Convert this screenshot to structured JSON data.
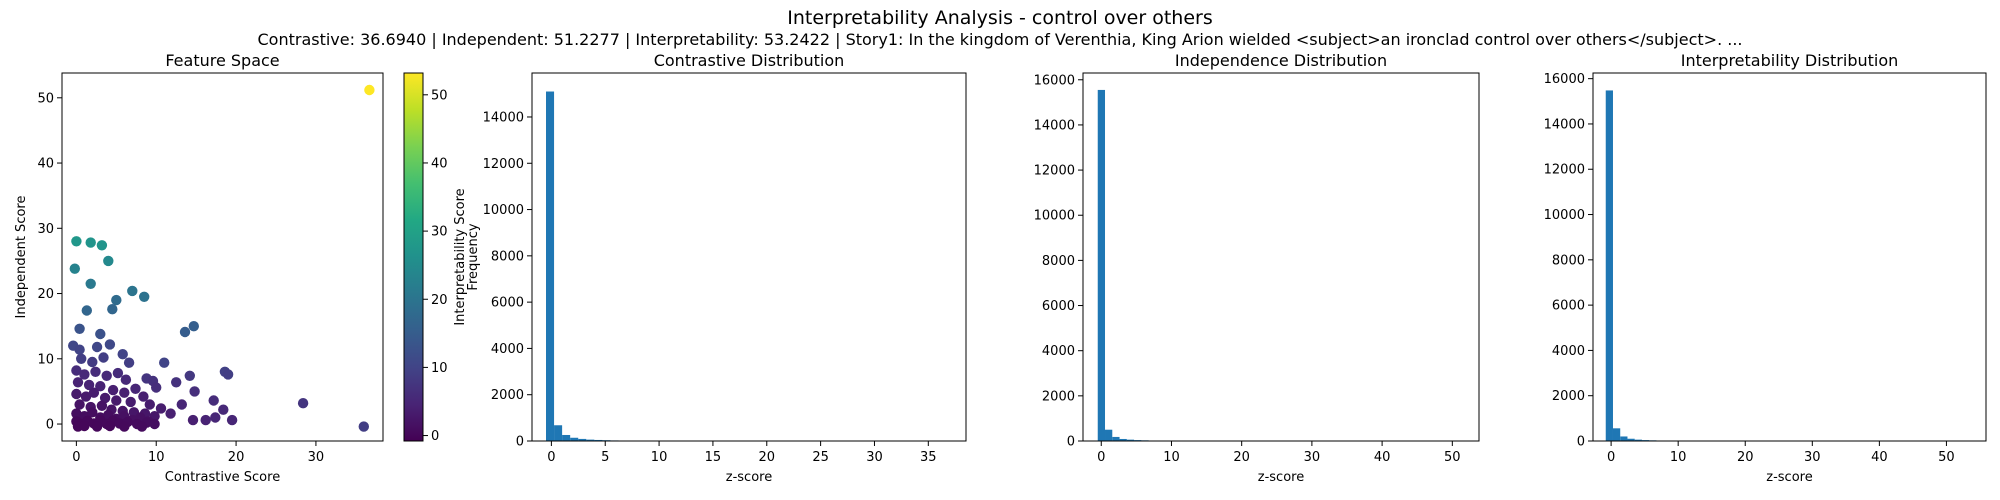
{
  "figure": {
    "title": "Interpretability Analysis - control over others",
    "subtitle": "Contrastive: 36.6940 | Independent: 51.2277 | Interpretability: 53.2422 | Story1: In the kingdom of Verenthia, King Arion wielded <subject>an ironclad control over others</subject>. ..."
  },
  "chart_data": [
    {
      "type": "scatter",
      "title": "Feature Space",
      "xlabel": "Contrastive Score",
      "ylabel": "Independent Score",
      "xlim": [
        -1.8,
        38.4
      ],
      "ylim": [
        -2.6,
        53.8
      ],
      "xticks": [
        0,
        10,
        20,
        30
      ],
      "yticks": [
        0,
        10,
        20,
        30,
        40,
        50
      ],
      "colorbar": {
        "label": "Interpretability Score",
        "colormap": "viridis",
        "range": [
          -0.8,
          53.2
        ],
        "ticks": [
          0,
          10,
          20,
          30,
          40,
          50
        ]
      },
      "points": [
        {
          "x": 36.7,
          "y": 51.2,
          "c": 53.2
        },
        {
          "x": 0.0,
          "y": 28.0,
          "c": 27.5
        },
        {
          "x": 1.8,
          "y": 27.8,
          "c": 27.0
        },
        {
          "x": 3.2,
          "y": 27.4,
          "c": 27.0
        },
        {
          "x": 4.0,
          "y": 25.0,
          "c": 24.5
        },
        {
          "x": -0.2,
          "y": 23.8,
          "c": 23.0
        },
        {
          "x": 1.8,
          "y": 21.5,
          "c": 21.0
        },
        {
          "x": 7.0,
          "y": 20.4,
          "c": 20.0
        },
        {
          "x": 8.5,
          "y": 19.5,
          "c": 19.5
        },
        {
          "x": 5.0,
          "y": 19.0,
          "c": 18.0
        },
        {
          "x": 1.3,
          "y": 17.4,
          "c": 17.0
        },
        {
          "x": 4.5,
          "y": 17.6,
          "c": 17.0
        },
        {
          "x": 14.7,
          "y": 15.0,
          "c": 15.5
        },
        {
          "x": 13.6,
          "y": 14.1,
          "c": 15.0
        },
        {
          "x": 0.4,
          "y": 14.6,
          "c": 13.0
        },
        {
          "x": 3.0,
          "y": 13.8,
          "c": 12.5
        },
        {
          "x": -0.4,
          "y": 12.0,
          "c": 10.5
        },
        {
          "x": 0.4,
          "y": 11.4,
          "c": 10.0
        },
        {
          "x": 2.6,
          "y": 11.8,
          "c": 10.5
        },
        {
          "x": 4.2,
          "y": 12.2,
          "c": 11.0
        },
        {
          "x": 5.8,
          "y": 10.7,
          "c": 10.0
        },
        {
          "x": 0.6,
          "y": 10.0,
          "c": 9.0
        },
        {
          "x": 2.0,
          "y": 9.5,
          "c": 8.5
        },
        {
          "x": 3.4,
          "y": 10.2,
          "c": 9.0
        },
        {
          "x": 6.6,
          "y": 9.4,
          "c": 9.0
        },
        {
          "x": 11.0,
          "y": 9.4,
          "c": 10.0
        },
        {
          "x": 8.8,
          "y": 7.0,
          "c": 7.5
        },
        {
          "x": 9.6,
          "y": 6.6,
          "c": 7.0
        },
        {
          "x": 10.0,
          "y": 5.6,
          "c": 6.5
        },
        {
          "x": 12.5,
          "y": 6.4,
          "c": 7.0
        },
        {
          "x": 14.2,
          "y": 7.4,
          "c": 8.0
        },
        {
          "x": 18.6,
          "y": 8.0,
          "c": 9.5
        },
        {
          "x": 19.0,
          "y": 7.6,
          "c": 9.0
        },
        {
          "x": 14.8,
          "y": 5.0,
          "c": 6.5
        },
        {
          "x": 13.2,
          "y": 3.0,
          "c": 5.0
        },
        {
          "x": 17.2,
          "y": 3.6,
          "c": 6.0
        },
        {
          "x": 18.4,
          "y": 2.2,
          "c": 5.5
        },
        {
          "x": 11.8,
          "y": 1.6,
          "c": 4.0
        },
        {
          "x": 14.6,
          "y": 0.6,
          "c": 4.0
        },
        {
          "x": 16.2,
          "y": 0.6,
          "c": 4.5
        },
        {
          "x": 17.4,
          "y": 1.0,
          "c": 5.0
        },
        {
          "x": 19.5,
          "y": 0.6,
          "c": 5.0
        },
        {
          "x": 28.4,
          "y": 3.2,
          "c": 7.5
        },
        {
          "x": 36.0,
          "y": -0.4,
          "c": 9.0
        },
        {
          "x": 0.0,
          "y": 8.2,
          "c": 6.0
        },
        {
          "x": 1.0,
          "y": 7.6,
          "c": 5.5
        },
        {
          "x": 2.4,
          "y": 8.0,
          "c": 6.0
        },
        {
          "x": 3.8,
          "y": 7.4,
          "c": 5.5
        },
        {
          "x": 5.2,
          "y": 7.8,
          "c": 6.0
        },
        {
          "x": 6.2,
          "y": 6.8,
          "c": 5.5
        },
        {
          "x": 7.4,
          "y": 5.4,
          "c": 5.0
        },
        {
          "x": 0.2,
          "y": 6.4,
          "c": 4.5
        },
        {
          "x": 1.6,
          "y": 6.0,
          "c": 4.5
        },
        {
          "x": 3.0,
          "y": 5.8,
          "c": 4.5
        },
        {
          "x": 4.6,
          "y": 5.2,
          "c": 4.0
        },
        {
          "x": 6.0,
          "y": 4.8,
          "c": 4.0
        },
        {
          "x": 8.4,
          "y": 4.2,
          "c": 4.0
        },
        {
          "x": 0.0,
          "y": 4.6,
          "c": 3.0
        },
        {
          "x": 1.2,
          "y": 4.2,
          "c": 3.0
        },
        {
          "x": 2.2,
          "y": 4.8,
          "c": 3.5
        },
        {
          "x": 3.6,
          "y": 4.0,
          "c": 3.0
        },
        {
          "x": 5.0,
          "y": 3.6,
          "c": 3.0
        },
        {
          "x": 6.8,
          "y": 3.4,
          "c": 3.5
        },
        {
          "x": 9.2,
          "y": 3.0,
          "c": 3.5
        },
        {
          "x": 10.6,
          "y": 2.4,
          "c": 3.5
        },
        {
          "x": 0.4,
          "y": 3.0,
          "c": 2.0
        },
        {
          "x": 1.8,
          "y": 2.6,
          "c": 2.0
        },
        {
          "x": 3.2,
          "y": 2.8,
          "c": 2.0
        },
        {
          "x": 4.4,
          "y": 2.2,
          "c": 2.0
        },
        {
          "x": 5.8,
          "y": 2.0,
          "c": 2.0
        },
        {
          "x": 7.2,
          "y": 1.8,
          "c": 2.5
        },
        {
          "x": 8.6,
          "y": 1.6,
          "c": 2.5
        },
        {
          "x": 9.8,
          "y": 1.2,
          "c": 2.5
        },
        {
          "x": 0.0,
          "y": 1.6,
          "c": 1.0
        },
        {
          "x": 1.0,
          "y": 1.2,
          "c": 1.0
        },
        {
          "x": 2.0,
          "y": 1.8,
          "c": 1.0
        },
        {
          "x": 3.0,
          "y": 1.0,
          "c": 1.0
        },
        {
          "x": 4.0,
          "y": 1.4,
          "c": 1.0
        },
        {
          "x": 5.0,
          "y": 0.8,
          "c": 1.0
        },
        {
          "x": 6.0,
          "y": 1.2,
          "c": 1.5
        },
        {
          "x": 7.0,
          "y": 0.6,
          "c": 1.5
        },
        {
          "x": 8.0,
          "y": 1.0,
          "c": 1.5
        },
        {
          "x": 9.0,
          "y": 0.4,
          "c": 1.5
        },
        {
          "x": 0.0,
          "y": 0.4,
          "c": 0.2
        },
        {
          "x": 0.6,
          "y": 0.0,
          "c": 0.0
        },
        {
          "x": 1.4,
          "y": 0.5,
          "c": 0.2
        },
        {
          "x": 2.2,
          "y": 0.1,
          "c": 0.2
        },
        {
          "x": 3.0,
          "y": 0.6,
          "c": 0.3
        },
        {
          "x": 3.8,
          "y": 0.0,
          "c": 0.3
        },
        {
          "x": 4.6,
          "y": 0.5,
          "c": 0.4
        },
        {
          "x": 5.4,
          "y": 0.1,
          "c": 0.5
        },
        {
          "x": 6.4,
          "y": 0.3,
          "c": 0.6
        },
        {
          "x": 7.6,
          "y": 0.0,
          "c": 0.8
        },
        {
          "x": 8.8,
          "y": 0.2,
          "c": 1.0
        },
        {
          "x": 9.8,
          "y": 0.0,
          "c": 1.2
        },
        {
          "x": 0.2,
          "y": -0.4,
          "c": 0.0
        },
        {
          "x": 1.0,
          "y": -0.3,
          "c": 0.0
        },
        {
          "x": 2.6,
          "y": -0.4,
          "c": 0.1
        },
        {
          "x": 4.2,
          "y": -0.3,
          "c": 0.2
        },
        {
          "x": 6.0,
          "y": -0.4,
          "c": 0.4
        },
        {
          "x": 8.2,
          "y": -0.4,
          "c": 0.7
        }
      ]
    },
    {
      "type": "bar",
      "title": "Contrastive Distribution",
      "xlabel": "z-score",
      "ylabel": "Frequency",
      "xlim": [
        -1.8,
        38.5
      ],
      "ylim": [
        0,
        15900
      ],
      "xticks": [
        0,
        5,
        10,
        15,
        20,
        25,
        30,
        35
      ],
      "yticks": [
        0,
        2000,
        4000,
        6000,
        8000,
        10000,
        12000,
        14000
      ],
      "bin_start": -0.5,
      "bin_width": 0.748,
      "counts": [
        15100,
        680,
        260,
        140,
        90,
        60,
        45,
        35,
        25,
        20,
        15,
        12,
        10,
        8
      ]
    },
    {
      "type": "bar",
      "title": "Independence Distribution",
      "xlabel": "z-score",
      "ylabel": "",
      "xlim": [
        -2.6,
        53.8
      ],
      "ylim": [
        0,
        16300
      ],
      "xticks": [
        0,
        10,
        20,
        30,
        40,
        50
      ],
      "yticks": [
        0,
        2000,
        4000,
        6000,
        8000,
        10000,
        12000,
        14000,
        16000
      ],
      "bin_start": -0.5,
      "bin_width": 1.035,
      "counts": [
        15550,
        500,
        180,
        90,
        60,
        40,
        30,
        22,
        15,
        12,
        10,
        8
      ]
    },
    {
      "type": "bar",
      "title": "Interpretability Distribution",
      "xlabel": "z-score",
      "ylabel": "",
      "xlim": [
        -2.7,
        55.9
      ],
      "ylim": [
        0,
        16250
      ],
      "xticks": [
        0,
        10,
        20,
        30,
        40,
        50
      ],
      "yticks": [
        0,
        2000,
        4000,
        6000,
        8000,
        10000,
        12000,
        14000,
        16000
      ],
      "bin_start": -0.8,
      "bin_width": 1.08,
      "counts": [
        15480,
        560,
        200,
        100,
        60,
        40,
        30,
        22,
        15,
        12,
        10,
        8
      ]
    }
  ],
  "colors": {
    "bar": "#1f77b4",
    "axis": "#000000",
    "background": "#ffffff"
  }
}
